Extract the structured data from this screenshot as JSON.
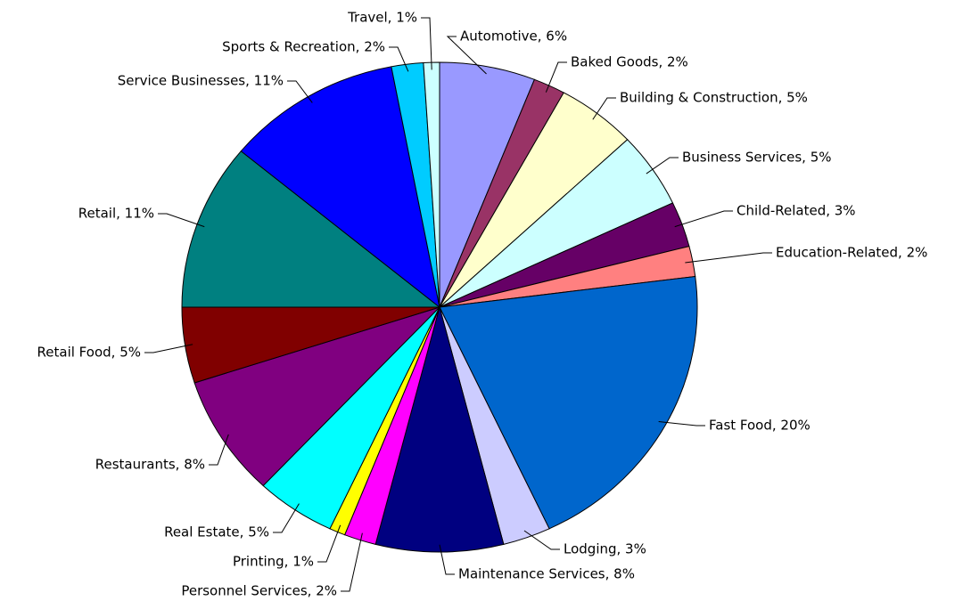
{
  "chart_data": {
    "type": "pie",
    "values": [
      6,
      2,
      5,
      5,
      3,
      2,
      20,
      3,
      8,
      2,
      1,
      5,
      8,
      5,
      11,
      11,
      2,
      1
    ],
    "value_labels": [
      "Automotive, 6%",
      "Baked Goods, 2%",
      "Building & Construction, 5%",
      "Business Services, 5%",
      "Child-Related, 3%",
      "Education-Related, 2%",
      "Fast Food, 20%",
      "Lodging, 3%",
      "Maintenance Services, 8%",
      "Personnel Services, 2%",
      "Printing, 1%",
      "Real Estate, 5%",
      "Restaurants, 8%",
      "Retail Food, 5%",
      "Retail, 11%",
      "Service Businesses, 11%",
      "Sports & Recreation, 2%",
      "Travel, 1%"
    ],
    "colors": [
      "#9999ff",
      "#993366",
      "#ffffcc",
      "#ccffff",
      "#660066",
      "#ff8080",
      "#0066cc",
      "#ccccff",
      "#000080",
      "#ff00ff",
      "#ffff00",
      "#00ffff",
      "#800080",
      "#800000",
      "#008080",
      "#0000ff",
      "#00ccff",
      "#ccffff"
    ]
  }
}
